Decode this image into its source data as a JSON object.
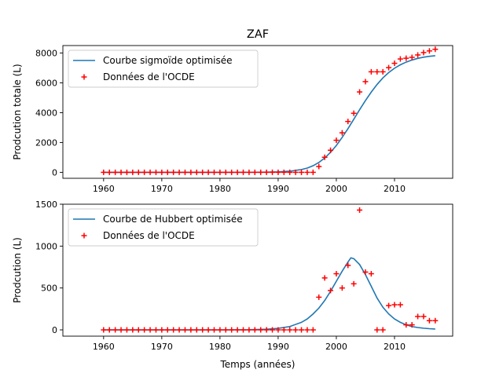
{
  "figure": {
    "title": "ZAF",
    "xlabel": "Temps (années)"
  },
  "colors": {
    "fit_line": "#1f77b4",
    "markers": "#ff0000",
    "axes": "#000000"
  },
  "chart_data": [
    {
      "type": "line",
      "title": "ZAF",
      "xlabel": "",
      "ylabel": "Prodcution totale (L)",
      "xlim": [
        1953,
        2020
      ],
      "ylim": [
        -400,
        8500
      ],
      "xticks": [
        1960,
        1970,
        1980,
        1990,
        2000,
        2010
      ],
      "yticks": [
        0,
        2000,
        4000,
        6000,
        8000
      ],
      "grid": false,
      "legend_position": "upper-left",
      "series": [
        {
          "name": "Courbe sigmoïde optimisée",
          "kind": "line",
          "x": [
            1960,
            1965,
            1970,
            1975,
            1980,
            1985,
            1988,
            1990,
            1992,
            1994,
            1995,
            1996,
            1997,
            1998,
            1999,
            2000,
            2001,
            2002,
            2003,
            2004,
            2005,
            2006,
            2007,
            2008,
            2009,
            2010,
            2011,
            2012,
            2013,
            2014,
            2015,
            2016,
            2017
          ],
          "y": [
            0,
            0,
            0,
            0,
            0,
            2,
            12,
            30,
            75,
            185,
            285,
            440,
            660,
            960,
            1340,
            1800,
            2340,
            2930,
            3560,
            4200,
            4810,
            5380,
            5890,
            6330,
            6690,
            6980,
            7210,
            7390,
            7530,
            7640,
            7720,
            7780,
            7820
          ]
        },
        {
          "name": "Données de l'OCDE",
          "kind": "scatter",
          "x": [
            1960,
            1961,
            1962,
            1963,
            1964,
            1965,
            1966,
            1967,
            1968,
            1969,
            1970,
            1971,
            1972,
            1973,
            1974,
            1975,
            1976,
            1977,
            1978,
            1979,
            1980,
            1981,
            1982,
            1983,
            1984,
            1985,
            1986,
            1987,
            1988,
            1989,
            1990,
            1991,
            1992,
            1993,
            1994,
            1995,
            1996,
            1997,
            1998,
            1999,
            2000,
            2001,
            2002,
            2003,
            2004,
            2005,
            2006,
            2007,
            2008,
            2009,
            2010,
            2011,
            2012,
            2013,
            2014,
            2015,
            2016,
            2017
          ],
          "y": [
            0,
            0,
            0,
            0,
            0,
            0,
            0,
            0,
            0,
            0,
            0,
            0,
            0,
            0,
            0,
            0,
            0,
            0,
            0,
            0,
            0,
            0,
            0,
            0,
            0,
            0,
            0,
            0,
            0,
            0,
            0,
            0,
            0,
            0,
            0,
            0,
            0,
            390,
            1010,
            1480,
            2150,
            2650,
            3410,
            3960,
            5390,
            6080,
            6740,
            6740,
            6740,
            7020,
            7310,
            7600,
            7650,
            7710,
            7870,
            8030,
            8140,
            8250
          ]
        }
      ]
    },
    {
      "type": "line",
      "title": "",
      "xlabel": "Temps (années)",
      "ylabel": "Prodcution (L)",
      "xlim": [
        1953,
        2020
      ],
      "ylim": [
        -75,
        1500
      ],
      "xticks": [
        1960,
        1970,
        1980,
        1990,
        2000,
        2010
      ],
      "yticks": [
        0,
        500,
        1000,
        1500
      ],
      "grid": false,
      "legend_position": "upper-left",
      "series": [
        {
          "name": "Courbe de Hubbert optimisée",
          "kind": "line",
          "x": [
            1960,
            1965,
            1970,
            1975,
            1980,
            1985,
            1988,
            1990,
            1992,
            1994,
            1995,
            1996,
            1997,
            1998,
            1999,
            2000,
            2001,
            2002,
            2002.5,
            2003,
            2004,
            2005,
            2006,
            2007,
            2008,
            2009,
            2010,
            2011,
            2012,
            2013,
            2014,
            2015,
            2016,
            2017
          ],
          "y": [
            0,
            0,
            0,
            0,
            0,
            2,
            8,
            18,
            40,
            90,
            130,
            190,
            260,
            350,
            460,
            580,
            700,
            810,
            860,
            850,
            780,
            660,
            520,
            380,
            270,
            190,
            130,
            90,
            60,
            40,
            28,
            20,
            14,
            10
          ]
        },
        {
          "name": "Données de l'OCDE",
          "kind": "scatter",
          "x": [
            1960,
            1961,
            1962,
            1963,
            1964,
            1965,
            1966,
            1967,
            1968,
            1969,
            1970,
            1971,
            1972,
            1973,
            1974,
            1975,
            1976,
            1977,
            1978,
            1979,
            1980,
            1981,
            1982,
            1983,
            1984,
            1985,
            1986,
            1987,
            1988,
            1989,
            1990,
            1991,
            1992,
            1993,
            1994,
            1995,
            1996,
            1997,
            1998,
            1999,
            2000,
            2001,
            2002,
            2003,
            2004,
            2005,
            2006,
            2007,
            2008,
            2009,
            2010,
            2011,
            2012,
            2013,
            2014,
            2015,
            2016,
            2017
          ],
          "y": [
            0,
            0,
            0,
            0,
            0,
            0,
            0,
            0,
            0,
            0,
            0,
            0,
            0,
            0,
            0,
            0,
            0,
            0,
            0,
            0,
            0,
            0,
            0,
            0,
            0,
            0,
            0,
            0,
            0,
            0,
            0,
            0,
            0,
            0,
            0,
            0,
            0,
            390,
            620,
            470,
            670,
            500,
            770,
            550,
            1430,
            690,
            670,
            0,
            0,
            290,
            300,
            300,
            60,
            60,
            160,
            160,
            110,
            110
          ]
        }
      ]
    }
  ]
}
